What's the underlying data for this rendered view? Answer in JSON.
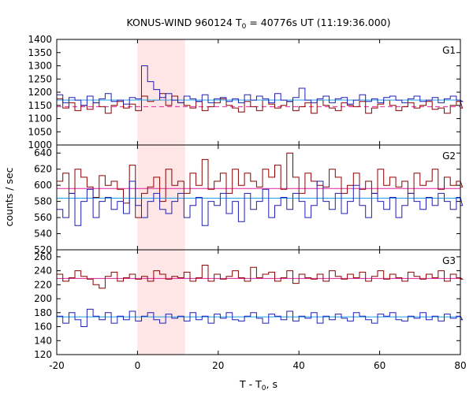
{
  "chart_data": {
    "type": "line",
    "title": {
      "main": "KONUS-WIND 960124 T",
      "sub": "0",
      "rest": " = 40776s UT (11:19:36.000)"
    },
    "xlabel": {
      "main": "T - T",
      "sub": "0",
      "rest": ", s"
    },
    "ylabel": "counts / sec",
    "xlim": [
      -20,
      80
    ],
    "x_ticks": [
      -20,
      0,
      20,
      40,
      60,
      80
    ],
    "highlight_interval": [
      0,
      11.8
    ],
    "bin_width": 1.5,
    "colors": {
      "red_series": "#8b0000",
      "blue_series": "#1f1fb4",
      "red_bg": "#e0209b",
      "blue_bg": "#1ea0f0",
      "highlight": "#ffd6d6"
    },
    "panels": [
      {
        "name": "G1",
        "ylim": [
          1000,
          1400
        ],
        "y_ticks": [
          1000,
          1050,
          1100,
          1150,
          1200,
          1250,
          1300,
          1350,
          1400
        ],
        "series": [
          {
            "color": "red_series",
            "background_level": 1145,
            "values": [
              1175,
              1140,
              1160,
              1130,
              1150,
              1135,
              1160,
              1145,
              1120,
              1150,
              1165,
              1140,
              1155,
              1130,
              1185,
              1165,
              1170,
              1195,
              1150,
              1185,
              1160,
              1150,
              1140,
              1165,
              1130,
              1145,
              1160,
              1175,
              1150,
              1140,
              1125,
              1165,
              1145,
              1130,
              1170,
              1155,
              1140,
              1150,
              1165,
              1130,
              1145,
              1160,
              1120,
              1170,
              1150,
              1140,
              1130,
              1160,
              1150,
              1145,
              1165,
              1120,
              1140,
              1155,
              1170,
              1150,
              1130,
              1145,
              1160,
              1140,
              1150,
              1165,
              1135,
              1140,
              1120,
              1150,
              1165,
              1140
            ]
          },
          {
            "color": "blue_series",
            "background_level": 1170,
            "values": [
              1190,
              1160,
              1180,
              1170,
              1150,
              1185,
              1160,
              1175,
              1195,
              1165,
              1170,
              1155,
              1180,
              1175,
              1300,
              1240,
              1210,
              1180,
              1195,
              1170,
              1160,
              1185,
              1175,
              1165,
              1190,
              1160,
              1175,
              1180,
              1165,
              1175,
              1160,
              1190,
              1170,
              1185,
              1175,
              1160,
              1195,
              1170,
              1165,
              1180,
              1215,
              1170,
              1160,
              1175,
              1185,
              1160,
              1175,
              1180,
              1155,
              1170,
              1190,
              1165,
              1175,
              1160,
              1180,
              1185,
              1170,
              1160,
              1175,
              1185,
              1165,
              1170,
              1180,
              1160,
              1175,
              1185,
              1170,
              1165
            ]
          }
        ]
      },
      {
        "name": "G2",
        "ylim": [
          520,
          650
        ],
        "y_ticks": [
          520,
          540,
          560,
          580,
          600,
          620,
          640
        ],
        "series": [
          {
            "color": "red_series",
            "background_level": 596,
            "values": [
              605,
              615,
              590,
              620,
              610,
              598,
              585,
              612,
              600,
              605,
              595,
              578,
              625,
              560,
              590,
              598,
              610,
              580,
              620,
              600,
              605,
              590,
              615,
              600,
              632,
              595,
              605,
              615,
              590,
              620,
              600,
              615,
              605,
              598,
              620,
              610,
              625,
              595,
              640,
              610,
              590,
              615,
              605,
              600,
              598,
              620,
              610,
              590,
              600,
              615,
              595,
              605,
              590,
              620,
              600,
              610,
              598,
              605,
              590,
              615,
              600,
              605,
              620,
              595,
              610,
              600,
              605,
              598
            ]
          },
          {
            "color": "blue_series",
            "background_level": 584,
            "values": [
              570,
              560,
              590,
              550,
              580,
              595,
              560,
              580,
              585,
              570,
              580,
              565,
              605,
              575,
              560,
              580,
              590,
              570,
              565,
              580,
              590,
              560,
              575,
              585,
              550,
              580,
              575,
              590,
              565,
              580,
              555,
              590,
              570,
              580,
              595,
              560,
              575,
              585,
              570,
              590,
              580,
              560,
              575,
              605,
              580,
              570,
              590,
              565,
              580,
              600,
              575,
              560,
              590,
              580,
              570,
              585,
              560,
              575,
              590,
              580,
              570,
              585,
              575,
              590,
              580,
              570,
              585,
              575
            ]
          }
        ]
      },
      {
        "name": "G3",
        "ylim": [
          120,
          270
        ],
        "y_ticks": [
          120,
          140,
          160,
          180,
          200,
          220,
          240,
          260
        ],
        "series": [
          {
            "color": "red_series",
            "background_level": 229,
            "values": [
              235,
              225,
              230,
              240,
              232,
              228,
              220,
              215,
              232,
              238,
              225,
              230,
              235,
              228,
              232,
              225,
              240,
              235,
              228,
              232,
              230,
              238,
              225,
              230,
              248,
              225,
              235,
              228,
              232,
              240,
              230,
              225,
              245,
              230,
              235,
              238,
              225,
              230,
              240,
              222,
              235,
              230,
              228,
              235,
              225,
              240,
              232,
              228,
              235,
              230,
              238,
              225,
              232,
              240,
              228,
              235,
              230,
              225,
              238,
              232,
              228,
              235,
              230,
              240,
              225,
              235,
              230,
              228
            ]
          },
          {
            "color": "blue_series",
            "background_level": 174,
            "values": [
              175,
              165,
              180,
              170,
              160,
              185,
              175,
              170,
              180,
              165,
              175,
              170,
              182,
              168,
              175,
              180,
              170,
              165,
              178,
              172,
              175,
              168,
              180,
              170,
              175,
              165,
              178,
              172,
              180,
              170,
              168,
              175,
              180,
              172,
              165,
              178,
              175,
              170,
              182,
              168,
              175,
              172,
              180,
              165,
              175,
              170,
              178,
              172,
              168,
              180,
              175,
              170,
              165,
              178,
              175,
              180,
              170,
              168,
              175,
              172,
              180,
              170,
              175,
              168,
              178,
              172,
              175,
              170
            ]
          }
        ]
      }
    ]
  }
}
